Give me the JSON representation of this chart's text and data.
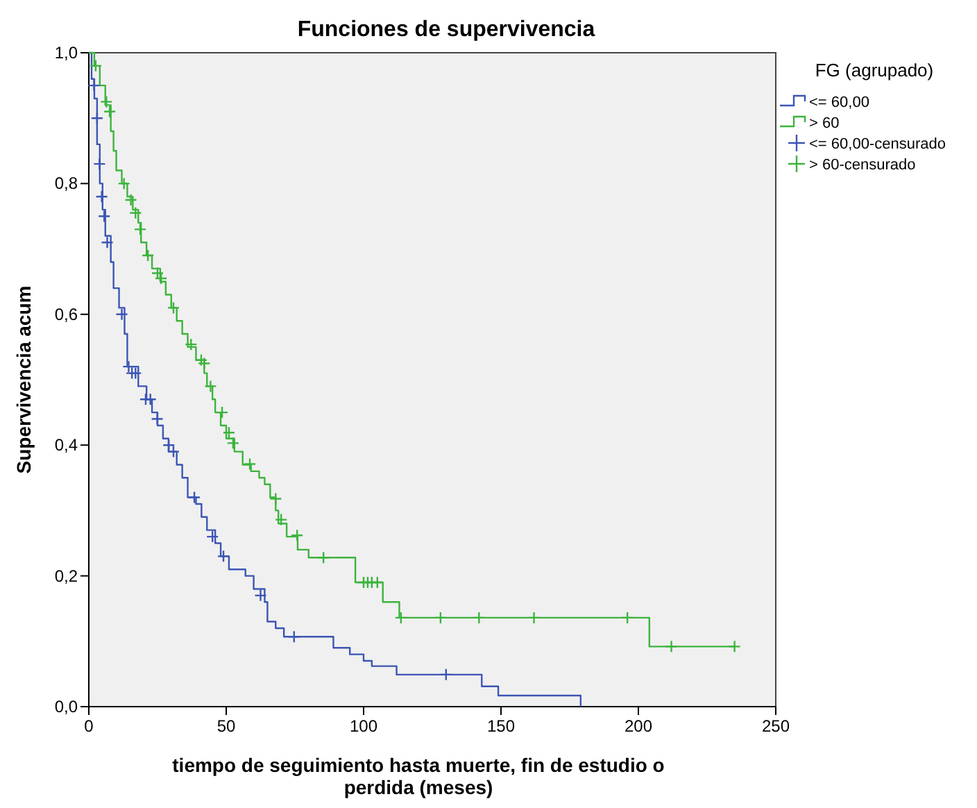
{
  "chart_data": {
    "type": "step",
    "title": "Funciones de supervivencia",
    "xlabel": "tiempo de seguimiento hasta muerte, fin de estudio o perdida (meses)",
    "ylabel": "Supervivencia acum",
    "legend_title": "FG (agrupado)",
    "legend": "right",
    "grid": false,
    "xlim": [
      0,
      250
    ],
    "xticks": [
      0,
      50,
      100,
      150,
      200,
      250
    ],
    "ylim": [
      0,
      1
    ],
    "yticks": [
      {
        "value": 0,
        "label": "0,0"
      },
      {
        "value": 0.2,
        "label": "0,2"
      },
      {
        "value": 0.4,
        "label": "0,4"
      },
      {
        "value": 0.6,
        "label": "0,6"
      },
      {
        "value": 0.8,
        "label": "0,8"
      },
      {
        "value": 1,
        "label": "1,0"
      }
    ],
    "series": [
      {
        "name": "<= 60,00",
        "type": "step",
        "color": "#3c55b4",
        "x": [
          0,
          1,
          2,
          3,
          4,
          5,
          6,
          8,
          9,
          11,
          13,
          14,
          18,
          21,
          23,
          25,
          27,
          29,
          32,
          34,
          36,
          39,
          41,
          43,
          46,
          48,
          51,
          57,
          60,
          64,
          65,
          68,
          71,
          89,
          95,
          100,
          103,
          112,
          143,
          149,
          179
        ],
        "values": [
          1,
          0.96,
          0.93,
          0.86,
          0.8,
          0.76,
          0.72,
          0.68,
          0.64,
          0.61,
          0.57,
          0.52,
          0.49,
          0.47,
          0.45,
          0.43,
          0.41,
          0.39,
          0.37,
          0.35,
          0.32,
          0.31,
          0.29,
          0.27,
          0.25,
          0.23,
          0.21,
          0.2,
          0.18,
          0.16,
          0.13,
          0.12,
          0.107,
          0.09,
          0.08,
          0.07,
          0.062,
          0.049,
          0.031,
          0.017,
          0
        ]
      },
      {
        "name": "> 60",
        "type": "step",
        "color": "#3cb43c",
        "x": [
          0,
          2,
          4,
          6,
          8,
          9,
          10,
          12,
          14,
          16,
          18,
          19,
          21,
          23,
          26,
          28,
          30,
          32,
          34,
          36,
          39,
          42,
          43,
          45,
          46,
          48,
          50,
          53,
          56,
          59,
          62,
          64,
          66,
          68,
          69,
          72,
          76,
          80,
          97,
          107,
          113,
          204,
          235
        ],
        "values": [
          1,
          0.98,
          0.95,
          0.92,
          0.88,
          0.85,
          0.82,
          0.8,
          0.78,
          0.76,
          0.74,
          0.71,
          0.69,
          0.67,
          0.65,
          0.63,
          0.61,
          0.59,
          0.57,
          0.55,
          0.53,
          0.51,
          0.49,
          0.47,
          0.45,
          0.43,
          0.41,
          0.39,
          0.37,
          0.36,
          0.35,
          0.34,
          0.32,
          0.3,
          0.28,
          0.26,
          0.24,
          0.228,
          0.19,
          0.16,
          0.136,
          0.092,
          0.092
        ]
      },
      {
        "name": "<= 60,00-censurado",
        "type": "scatter",
        "marker": "cross",
        "color": "#3c55b4",
        "x": [
          1.9,
          3,
          3.9,
          4.7,
          5.6,
          6.7,
          12,
          14.5,
          15.7,
          17,
          20.7,
          22.4,
          24.9,
          29.1,
          30.8,
          38.4,
          45,
          49,
          62.5,
          74.7,
          130
        ],
        "values": [
          0.95,
          0.9,
          0.83,
          0.78,
          0.75,
          0.71,
          0.6,
          0.52,
          0.51,
          0.51,
          0.47,
          0.47,
          0.44,
          0.4,
          0.39,
          0.32,
          0.26,
          0.23,
          0.17,
          0.107,
          0.049
        ]
      },
      {
        "name": "> 60-censurado",
        "type": "scatter",
        "marker": "cross",
        "color": "#3cb43c",
        "x": [
          2.5,
          6.4,
          7.6,
          12.8,
          15.3,
          17,
          18.7,
          21.5,
          25,
          26.3,
          30.8,
          37.2,
          40.9,
          42,
          44.3,
          48.5,
          51,
          52.5,
          58.6,
          68,
          70,
          75.8,
          85.4,
          100,
          101.5,
          103,
          105,
          113.6,
          128,
          142,
          162,
          196,
          212,
          235
        ],
        "values": [
          0.98,
          0.925,
          0.91,
          0.8,
          0.775,
          0.755,
          0.73,
          0.69,
          0.663,
          0.655,
          0.61,
          0.554,
          0.53,
          0.525,
          0.49,
          0.45,
          0.419,
          0.403,
          0.371,
          0.318,
          0.286,
          0.262,
          0.228,
          0.19,
          0.19,
          0.19,
          0.19,
          0.136,
          0.136,
          0.136,
          0.136,
          0.136,
          0.092,
          0.092
        ]
      }
    ]
  }
}
